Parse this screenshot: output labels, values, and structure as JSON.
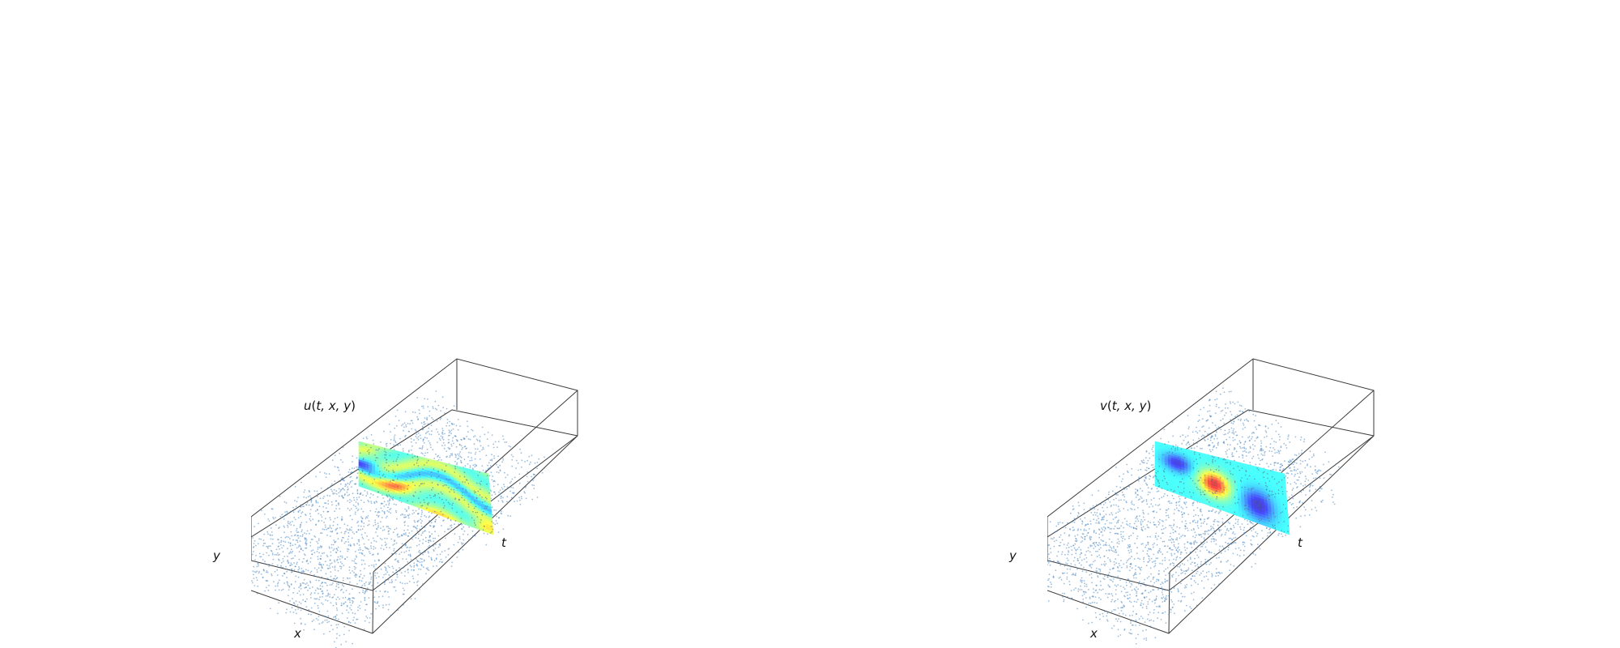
{
  "panels": [
    {
      "id": "u",
      "title_fn": "u",
      "title_args": "t, x, y",
      "axis_x": "x",
      "axis_y": "y",
      "axis_t": "t",
      "colormap": "jet",
      "field": "u"
    },
    {
      "id": "v",
      "title_fn": "v",
      "title_args": "t, x, y",
      "axis_x": "x",
      "axis_y": "y",
      "axis_t": "t",
      "colormap": "jet",
      "field": "v"
    }
  ],
  "colors": {
    "points": "#4a86bf",
    "box_edges": "#3a3a3a"
  }
}
